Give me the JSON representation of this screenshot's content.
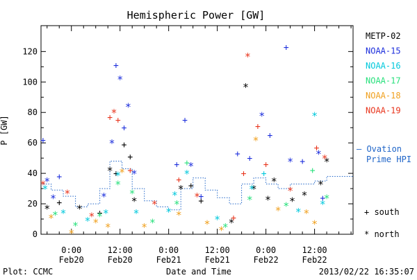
{
  "chart_data": {
    "type": "scatter",
    "title": "Hemispheric Power [GW]",
    "ylabel": "P [GW]",
    "xlabel": "Date and Time",
    "ylim": [
      0,
      137
    ],
    "yticks": [
      0,
      20,
      40,
      60,
      80,
      100,
      120
    ],
    "xlim": [
      "2013-02-19 16:30",
      "2013-02-22 21:30"
    ],
    "xticks": [
      {
        "time": "2013-02-20 00:00",
        "label": "0:00",
        "date": "Feb20"
      },
      {
        "time": "2013-02-20 12:00",
        "label": "12:00",
        "date": "Feb20"
      },
      {
        "time": "2013-02-21 00:00",
        "label": "0:00",
        "date": "Feb21"
      },
      {
        "time": "2013-02-21 12:00",
        "label": "12:00",
        "date": "Feb21"
      },
      {
        "time": "2013-02-22 00:00",
        "label": "0:00",
        "date": "Feb22"
      },
      {
        "time": "2013-02-22 12:00",
        "label": "12:00",
        "date": "Feb22"
      }
    ],
    "grid": false,
    "legend_position": "right",
    "hemisphere_markers": {
      "south": "+",
      "north": "*"
    },
    "series": [
      {
        "name": "METP-02",
        "color": "#000000",
        "points": [
          {
            "t": "2013-02-19 18:00",
            "y": 17,
            "h": "north"
          },
          {
            "t": "2013-02-19 21:00",
            "y": 21,
            "h": "south"
          },
          {
            "t": "2013-02-20 02:00",
            "y": 17,
            "h": "north"
          },
          {
            "t": "2013-02-20 07:00",
            "y": 14,
            "h": "south"
          },
          {
            "t": "2013-02-20 09:30",
            "y": 42,
            "h": "north"
          },
          {
            "t": "2013-02-20 11:00",
            "y": 40,
            "h": "south"
          },
          {
            "t": "2013-02-20 13:00",
            "y": 59,
            "h": "south"
          },
          {
            "t": "2013-02-20 14:30",
            "y": 51,
            "h": "south"
          },
          {
            "t": "2013-02-20 15:30",
            "y": 22,
            "h": "north"
          },
          {
            "t": "2013-02-21 03:00",
            "y": 30,
            "h": "north"
          },
          {
            "t": "2013-02-21 05:30",
            "y": 32,
            "h": "south"
          },
          {
            "t": "2013-02-21 08:00",
            "y": 22,
            "h": "south"
          },
          {
            "t": "2013-02-21 15:30",
            "y": 8,
            "h": "north"
          },
          {
            "t": "2013-02-21 19:00",
            "y": 97,
            "h": "north"
          },
          {
            "t": "2013-02-21 21:00",
            "y": 30,
            "h": "north"
          },
          {
            "t": "2013-02-22 00:30",
            "y": 23,
            "h": "north"
          },
          {
            "t": "2013-02-22 02:00",
            "y": 35,
            "h": "north"
          },
          {
            "t": "2013-02-22 06:30",
            "y": 22,
            "h": "north"
          },
          {
            "t": "2013-02-22 09:30",
            "y": 26,
            "h": "north"
          },
          {
            "t": "2013-02-22 13:30",
            "y": 33,
            "h": "north"
          },
          {
            "t": "2013-02-22 15:00",
            "y": 48,
            "h": "north"
          }
        ]
      },
      {
        "name": "NOAA-15",
        "color": "#1c2edc",
        "points": [
          {
            "t": "2013-02-19 17:00",
            "y": 62,
            "h": "south"
          },
          {
            "t": "2013-02-19 18:00",
            "y": 35,
            "h": "north"
          },
          {
            "t": "2013-02-19 19:30",
            "y": 24,
            "h": "north"
          },
          {
            "t": "2013-02-19 21:00",
            "y": 38,
            "h": "south"
          },
          {
            "t": "2013-02-20 08:00",
            "y": 25,
            "h": "north"
          },
          {
            "t": "2013-02-20 10:00",
            "y": 60,
            "h": "north"
          },
          {
            "t": "2013-02-20 11:00",
            "y": 111,
            "h": "south"
          },
          {
            "t": "2013-02-20 12:00",
            "y": 102,
            "h": "north"
          },
          {
            "t": "2013-02-20 13:00",
            "y": 70,
            "h": "south"
          },
          {
            "t": "2013-02-20 14:00",
            "y": 84,
            "h": "north"
          },
          {
            "t": "2013-02-20 15:30",
            "y": 40,
            "h": "north"
          },
          {
            "t": "2013-02-21 02:00",
            "y": 46,
            "h": "south"
          },
          {
            "t": "2013-02-21 04:00",
            "y": 75,
            "h": "south"
          },
          {
            "t": "2013-02-21 05:30",
            "y": 45,
            "h": "north"
          },
          {
            "t": "2013-02-21 08:00",
            "y": 25,
            "h": "south"
          },
          {
            "t": "2013-02-21 17:00",
            "y": 53,
            "h": "south"
          },
          {
            "t": "2013-02-21 20:00",
            "y": 50,
            "h": "south"
          },
          {
            "t": "2013-02-21 23:00",
            "y": 78,
            "h": "north"
          },
          {
            "t": "2013-02-22 01:00",
            "y": 65,
            "h": "south"
          },
          {
            "t": "2013-02-22 05:00",
            "y": 123,
            "h": "south"
          },
          {
            "t": "2013-02-22 06:00",
            "y": 48,
            "h": "north"
          },
          {
            "t": "2013-02-22 09:00",
            "y": 48,
            "h": "south"
          },
          {
            "t": "2013-02-22 13:00",
            "y": 53,
            "h": "north"
          },
          {
            "t": "2013-02-22 14:00",
            "y": 24,
            "h": "south"
          }
        ]
      },
      {
        "name": "NOAA-16",
        "color": "#00c8dc",
        "points": [
          {
            "t": "2013-02-19 17:30",
            "y": 30,
            "h": "north"
          },
          {
            "t": "2013-02-19 22:00",
            "y": 14,
            "h": "north"
          },
          {
            "t": "2013-02-20 04:00",
            "y": 9,
            "h": "north"
          },
          {
            "t": "2013-02-20 08:30",
            "y": 14,
            "h": "north"
          },
          {
            "t": "2013-02-20 11:30",
            "y": 39,
            "h": "north"
          },
          {
            "t": "2013-02-20 16:00",
            "y": 14,
            "h": "north"
          },
          {
            "t": "2013-02-21 00:00",
            "y": 15,
            "h": "north"
          },
          {
            "t": "2013-02-21 01:30",
            "y": 26,
            "h": "north"
          },
          {
            "t": "2013-02-21 04:30",
            "y": 40,
            "h": "north"
          },
          {
            "t": "2013-02-21 12:00",
            "y": 10,
            "h": "north"
          },
          {
            "t": "2013-02-21 20:30",
            "y": 30,
            "h": "north"
          },
          {
            "t": "2013-02-21 23:30",
            "y": 40,
            "h": "south"
          },
          {
            "t": "2013-02-22 08:00",
            "y": 15,
            "h": "north"
          },
          {
            "t": "2013-02-22 12:00",
            "y": 78,
            "h": "north"
          },
          {
            "t": "2013-02-22 14:00",
            "y": 20,
            "h": "north"
          }
        ]
      },
      {
        "name": "NOAA-17",
        "color": "#28e07c",
        "points": [
          {
            "t": "2013-02-19 20:00",
            "y": 13,
            "h": "north"
          },
          {
            "t": "2013-02-20 01:00",
            "y": 6,
            "h": "north"
          },
          {
            "t": "2013-02-20 07:00",
            "y": 12,
            "h": "north"
          },
          {
            "t": "2013-02-20 11:30",
            "y": 33,
            "h": "north"
          },
          {
            "t": "2013-02-20 15:00",
            "y": 27,
            "h": "north"
          },
          {
            "t": "2013-02-20 20:00",
            "y": 8,
            "h": "north"
          },
          {
            "t": "2013-02-21 02:00",
            "y": 20,
            "h": "north"
          },
          {
            "t": "2013-02-21 04:30",
            "y": 47,
            "h": "south"
          },
          {
            "t": "2013-02-21 14:00",
            "y": 5,
            "h": "north"
          },
          {
            "t": "2013-02-21 20:00",
            "y": 23,
            "h": "north"
          },
          {
            "t": "2013-02-22 05:00",
            "y": 19,
            "h": "north"
          },
          {
            "t": "2013-02-22 11:30",
            "y": 42,
            "h": "south"
          },
          {
            "t": "2013-02-22 15:00",
            "y": 24,
            "h": "north"
          }
        ]
      },
      {
        "name": "NOAA-18",
        "color": "#f0a01e",
        "points": [
          {
            "t": "2013-02-19 19:00",
            "y": 11,
            "h": "north"
          },
          {
            "t": "2013-02-20 00:00",
            "y": 1,
            "h": "north"
          },
          {
            "t": "2013-02-20 06:00",
            "y": 8,
            "h": "north"
          },
          {
            "t": "2013-02-20 09:00",
            "y": 5,
            "h": "north"
          },
          {
            "t": "2013-02-20 12:30",
            "y": 41,
            "h": "north"
          },
          {
            "t": "2013-02-20 18:00",
            "y": 5,
            "h": "north"
          },
          {
            "t": "2013-02-21 02:30",
            "y": 13,
            "h": "north"
          },
          {
            "t": "2013-02-21 09:30",
            "y": 7,
            "h": "north"
          },
          {
            "t": "2013-02-21 13:00",
            "y": 3,
            "h": "north"
          },
          {
            "t": "2013-02-21 21:30",
            "y": 62,
            "h": "north"
          },
          {
            "t": "2013-02-22 03:00",
            "y": 16,
            "h": "north"
          },
          {
            "t": "2013-02-22 10:00",
            "y": 14,
            "h": "north"
          },
          {
            "t": "2013-02-22 12:00",
            "y": 7,
            "h": "north"
          }
        ]
      },
      {
        "name": "NOAA-19",
        "color": "#e8341c",
        "points": [
          {
            "t": "2013-02-19 17:00",
            "y": 33,
            "h": "north"
          },
          {
            "t": "2013-02-19 23:00",
            "y": 27,
            "h": "north"
          },
          {
            "t": "2013-02-20 05:00",
            "y": 12,
            "h": "north"
          },
          {
            "t": "2013-02-20 09:30",
            "y": 77,
            "h": "south"
          },
          {
            "t": "2013-02-20 10:30",
            "y": 80,
            "h": "north"
          },
          {
            "t": "2013-02-20 11:30",
            "y": 75,
            "h": "south"
          },
          {
            "t": "2013-02-20 14:30",
            "y": 42,
            "h": "south"
          },
          {
            "t": "2013-02-20 20:30",
            "y": 20,
            "h": "north"
          },
          {
            "t": "2013-02-21 02:30",
            "y": 36,
            "h": "south"
          },
          {
            "t": "2013-02-21 07:00",
            "y": 25,
            "h": "north"
          },
          {
            "t": "2013-02-21 16:00",
            "y": 11,
            "h": "south"
          },
          {
            "t": "2013-02-21 18:30",
            "y": 40,
            "h": "south"
          },
          {
            "t": "2013-02-21 19:30",
            "y": 117,
            "h": "north"
          },
          {
            "t": "2013-02-21 22:00",
            "y": 71,
            "h": "south"
          },
          {
            "t": "2013-02-22 00:00",
            "y": 46,
            "h": "south"
          },
          {
            "t": "2013-02-22 06:00",
            "y": 29,
            "h": "north"
          },
          {
            "t": "2013-02-22 12:30",
            "y": 57,
            "h": "south"
          },
          {
            "t": "2013-02-22 14:30",
            "y": 50,
            "h": "north"
          }
        ]
      }
    ],
    "ovation_series": {
      "name": "Ovation Prime HPI",
      "color": "#1e64c8",
      "points": [
        {
          "t": "2013-02-19 16:30",
          "y": 33
        },
        {
          "t": "2013-02-19 19:00",
          "y": 29
        },
        {
          "t": "2013-02-19 22:00",
          "y": 25
        },
        {
          "t": "2013-02-20 01:00",
          "y": 18
        },
        {
          "t": "2013-02-20 04:00",
          "y": 20
        },
        {
          "t": "2013-02-20 07:00",
          "y": 30
        },
        {
          "t": "2013-02-20 09:30",
          "y": 48
        },
        {
          "t": "2013-02-20 12:30",
          "y": 43
        },
        {
          "t": "2013-02-20 15:00",
          "y": 30
        },
        {
          "t": "2013-02-20 18:00",
          "y": 22
        },
        {
          "t": "2013-02-20 21:00",
          "y": 18
        },
        {
          "t": "2013-02-21 00:00",
          "y": 16
        },
        {
          "t": "2013-02-21 03:00",
          "y": 30
        },
        {
          "t": "2013-02-21 06:00",
          "y": 37
        },
        {
          "t": "2013-02-21 09:00",
          "y": 29
        },
        {
          "t": "2013-02-21 12:00",
          "y": 24
        },
        {
          "t": "2013-02-21 15:00",
          "y": 20
        },
        {
          "t": "2013-02-21 18:00",
          "y": 33
        },
        {
          "t": "2013-02-21 21:00",
          "y": 37
        },
        {
          "t": "2013-02-22 00:00",
          "y": 33
        },
        {
          "t": "2013-02-22 03:00",
          "y": 30
        },
        {
          "t": "2013-02-22 06:00",
          "y": 33
        },
        {
          "t": "2013-02-22 09:00",
          "y": 33
        },
        {
          "t": "2013-02-22 12:00",
          "y": 35
        },
        {
          "t": "2013-02-22 15:00",
          "y": 38
        },
        {
          "t": "2013-02-22 18:00",
          "y": 38
        },
        {
          "t": "2013-02-22 21:30",
          "y": 38
        }
      ]
    }
  },
  "legend": {
    "satellites": [
      {
        "label": "METP-02",
        "color": "#000000"
      },
      {
        "label": "NOAA-15",
        "color": "#1c2edc"
      },
      {
        "label": "NOAA-16",
        "color": "#00c8dc"
      },
      {
        "label": "NOAA-17",
        "color": "#28e07c"
      },
      {
        "label": "NOAA-18",
        "color": "#f0a01e"
      },
      {
        "label": "NOAA-19",
        "color": "#e8341c"
      }
    ],
    "ovation_line1": "— Ovation",
    "ovation_line2": "Prime HPI",
    "south_label": "+ south",
    "north_label": "* north"
  },
  "footer": {
    "left": "Plot: CCMC",
    "center": "Date and Time",
    "right": "2013/02/22 16:35:07"
  }
}
